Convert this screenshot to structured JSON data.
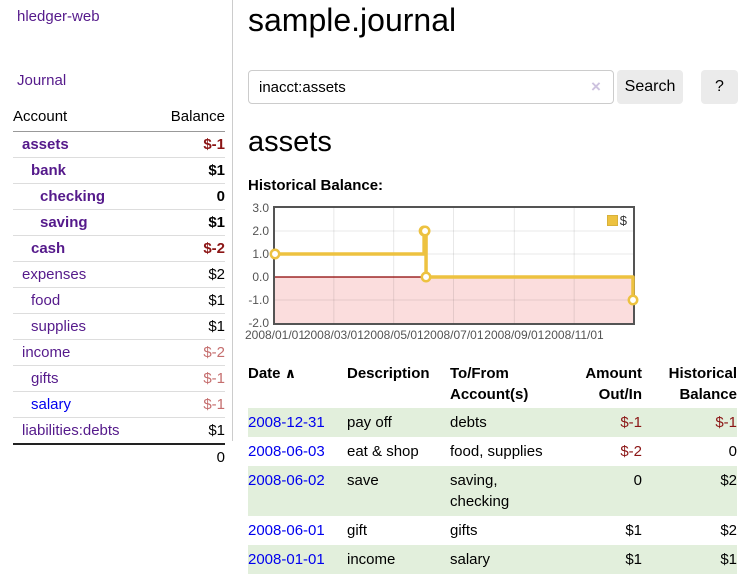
{
  "app": {
    "title": "hledger-web",
    "nav_journal": "Journal"
  },
  "sidebar": {
    "col_account": "Account",
    "col_balance": "Balance",
    "rows": [
      {
        "name": "assets",
        "balance": "$-1",
        "indent": 0,
        "bold": true,
        "name_color": "purple",
        "bal": "neg-strong"
      },
      {
        "name": "bank",
        "balance": "$1",
        "indent": 1,
        "bold": true,
        "name_color": "purple",
        "bal": "pos"
      },
      {
        "name": "checking",
        "balance": "0",
        "indent": 2,
        "bold": true,
        "name_color": "purple",
        "bal": "pos"
      },
      {
        "name": "saving",
        "balance": "$1",
        "indent": 2,
        "bold": true,
        "name_color": "purple",
        "bal": "pos"
      },
      {
        "name": "cash",
        "balance": "$-2",
        "indent": 1,
        "bold": true,
        "name_color": "purple",
        "bal": "neg-strong"
      },
      {
        "name": "expenses",
        "balance": "$2",
        "indent": 0,
        "bold": false,
        "name_color": "purple",
        "bal": "pos"
      },
      {
        "name": "food",
        "balance": "$1",
        "indent": 1,
        "bold": false,
        "name_color": "purple",
        "bal": "pos"
      },
      {
        "name": "supplies",
        "balance": "$1",
        "indent": 1,
        "bold": false,
        "name_color": "purple",
        "bal": "pos"
      },
      {
        "name": "income",
        "balance": "$-2",
        "indent": 0,
        "bold": false,
        "name_color": "purple",
        "bal": "neg-weak"
      },
      {
        "name": "gifts",
        "balance": "$-1",
        "indent": 1,
        "bold": false,
        "name_color": "purple",
        "bal": "neg-weak"
      },
      {
        "name": "salary",
        "balance": "$-1",
        "indent": 1,
        "bold": false,
        "name_color": "blue",
        "bal": "neg-weak"
      },
      {
        "name": "liabilities:debts",
        "balance": "$1",
        "indent": 0,
        "bold": false,
        "name_color": "purple",
        "bal": "pos"
      }
    ],
    "total": "0"
  },
  "main": {
    "title": "sample.journal",
    "search": {
      "value": "inacct:assets",
      "clear_icon": "×",
      "button": "Search",
      "help_button": "?"
    },
    "account_heading": "assets",
    "chart_label": "Historical Balance:"
  },
  "chart_data": {
    "type": "line",
    "title": "Historical Balance:",
    "step": true,
    "series": [
      {
        "name": "$",
        "color": "#edc240",
        "points": [
          [
            "2008-01-01",
            1
          ],
          [
            "2008-06-01",
            2
          ],
          [
            "2008-06-02",
            2
          ],
          [
            "2008-06-03",
            0
          ],
          [
            "2008-12-31",
            -1
          ]
        ]
      }
    ],
    "markers": [
      [
        "2008-01-01",
        1
      ],
      [
        "2008-06-01",
        2
      ],
      [
        "2008-06-02",
        2
      ],
      [
        "2008-06-03",
        0
      ],
      [
        "2008-12-31",
        -1
      ]
    ],
    "xlim": [
      "2008-01-01",
      "2008-12-31"
    ],
    "ylim": [
      -2,
      3
    ],
    "y_ticks": [
      "3.0",
      "2.0",
      "1.0",
      "0.0",
      "-1.0",
      "-2.0"
    ],
    "x_ticks": [
      "2008/01/01",
      "2008/03/01",
      "2008/05/01",
      "2008/07/01",
      "2008/09/01",
      "2008/11/01"
    ],
    "grid": true,
    "negative_region_color": "#fbdddd",
    "zero_line_color": "#8b0000",
    "legend": {
      "position": "top-right",
      "label": "$"
    }
  },
  "register": {
    "headers": [
      "Date",
      "Description",
      "To/From Account(s)",
      "Amount Out/In",
      "Historical Balance"
    ],
    "sort_icon": "∧",
    "rows": [
      {
        "date": "2008-12-31",
        "description": "pay off",
        "accounts": "debts",
        "amount": "$-1",
        "amount_neg": true,
        "balance": "$-1",
        "balance_neg": true
      },
      {
        "date": "2008-06-03",
        "description": "eat & shop",
        "accounts": "food, supplies",
        "amount": "$-2",
        "amount_neg": true,
        "balance": "0",
        "balance_neg": false
      },
      {
        "date": "2008-06-02",
        "description": "save",
        "accounts": "saving, checking",
        "amount": "0",
        "amount_neg": false,
        "balance": "$2",
        "balance_neg": false
      },
      {
        "date": "2008-06-01",
        "description": "gift",
        "accounts": "gifts",
        "amount": "$1",
        "amount_neg": false,
        "balance": "$2",
        "balance_neg": false
      },
      {
        "date": "2008-01-01",
        "description": "income",
        "accounts": "salary",
        "amount": "$1",
        "amount_neg": false,
        "balance": "$1",
        "balance_neg": false
      }
    ]
  }
}
